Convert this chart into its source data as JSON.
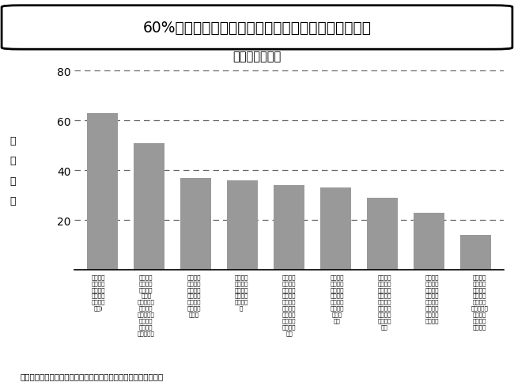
{
  "title_box": "60%の企業で下記のようなメンタルヘルス対策を実施",
  "subtitle": "実施割合と内容",
  "ylabel_chars": [
    "実",
    "施",
    "割",
    "合"
  ],
  "source": "出所：厚生労働省　令和４年「労働安全衛生調査（実態調査）」",
  "values": [
    63,
    51,
    37,
    36,
    34,
    33,
    29,
    23,
    14
  ],
  "bar_color": "#999999",
  "ylim": [
    0,
    80
  ],
  "yticks": [
    0,
    20,
    40,
    60,
    80
  ],
  "grid_color": "#666666",
  "categories_wrapped": [
    "メンタル\nヘルス対\n策に取り\n組んでい\nる事業所\n計１)",
    "職場環境\n等の評価\n及び改善\n（スト\nレスチェッ\nク結果の\n集団（部、\n課など）\nごとの分\n析を含む）",
    "メンタル\nヘルス対\n策に関す\nる労働者\nへの教育\n研修・情\n報提供",
    "メンタル\nヘルス対\n策の実務\nを行う担\n当者の選\n任",
    "健康診断\n後の保健\n指導等を\n通じた産\n業保健ス\nタッフに\nよるメン\nタルヘル\nス対策の\n実施",
    "メンタル\nヘルス対\n策に関す\nる管理監\n督者への\n教育研修\n・情報\n提供",
    "メンタル\nヘルス対\n策につい\nて、衛生\n委員会又\nは安全衛\n生委員会\nでの調査\n審議",
    "メンタル\nヘルス対\n策に関す\nる問題点\nを解決す\nるための\n計画の策\n定と実施",
    "メンタル\nヘルス対\n策に関す\nる事業所\n内の産業\n保健スタッ\nフへの教\n育研修・\n情報提供"
  ],
  "background_color": "#ffffff"
}
